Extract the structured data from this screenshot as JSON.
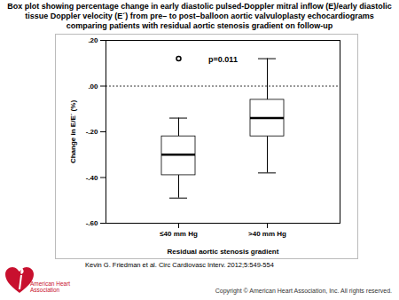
{
  "chart_data": {
    "type": "boxplot",
    "title": "Box plot showing percentage change in early diastolic pulsed-Doppler mitral inflow (E)/early diastolic tissue Doppler velocity (E´) from pre– to post–balloon aortic valvuloplasty echocardiograms comparing patients with residual aortic stenosis gradient on follow-up",
    "annotation": "p=0.011",
    "x_label": "Residual aortic stenosis gradient",
    "y_label": "Change in E/E´ (%)",
    "categories": [
      "≤40 mm Hg",
      ">40 mm Hg"
    ],
    "whisker_low": [
      -0.49,
      -0.38
    ],
    "q1": [
      -0.39,
      -0.22
    ],
    "median": [
      -0.3,
      -0.14
    ],
    "q3": [
      -0.22,
      -0.06
    ],
    "whisker_high": [
      -0.14,
      0.12
    ],
    "outliers": [
      [
        0.12
      ],
      []
    ],
    "reference_line": 0,
    "ylim": [
      -0.6,
      0.2
    ],
    "yticks": [
      {
        "value": -0.6,
        "label": "-.60"
      },
      {
        "value": -0.4,
        "label": "-.40"
      },
      {
        "value": -0.2,
        "label": "-.20"
      },
      {
        "value": 0,
        "label": ".00"
      },
      {
        "value": 0.2,
        "label": ".20"
      }
    ],
    "grid": false,
    "color": "#ffffff",
    "citation": "Kevin G. Friedman et al. Circ Cardiovasc Interv. 2012;5:549-554",
    "copyright": "Copyright © American Heart Association, Inc. All rights reserved.",
    "publisher": "American Heart Association"
  }
}
